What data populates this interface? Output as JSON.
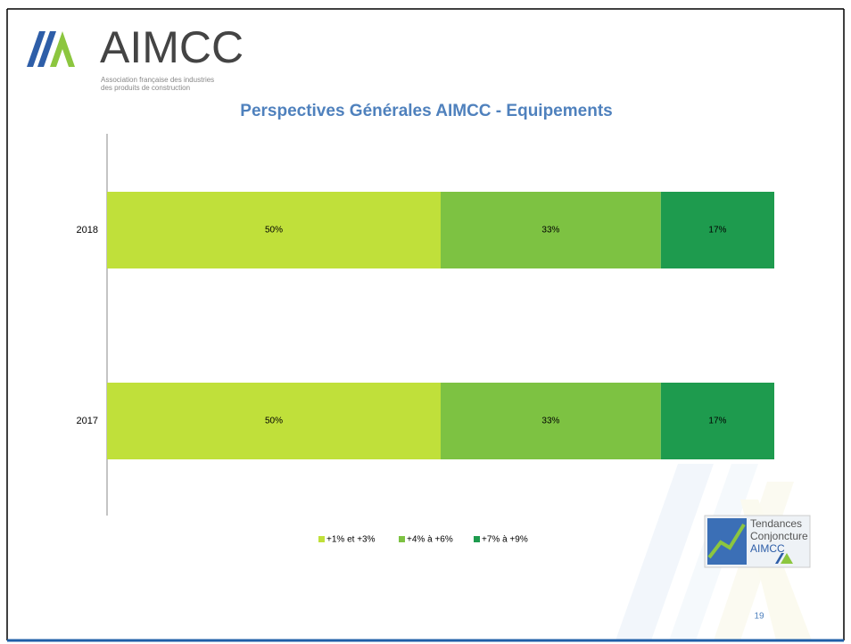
{
  "slide": {
    "logo": "AIMCC",
    "logo_line1": "Association française des industries",
    "logo_line2": "des produits de construction",
    "badge_line1": "Tendances",
    "badge_line2": "Conjoncture",
    "badge_line3": "AIMCC",
    "page_number": 19
  },
  "chart_data": {
    "type": "stacked_barh",
    "title": "Perspectives Générales AIMCC - Equipements",
    "categories": [
      "2018",
      "2017"
    ],
    "series": [
      {
        "name": "+1% et +3%",
        "color": "#c0e03a",
        "values": [
          50,
          50
        ],
        "value_labels": [
          "50%",
          "50%"
        ]
      },
      {
        "name": "+4% à +6%",
        "color": "#7dc242",
        "values": [
          33,
          33
        ],
        "value_labels": [
          "33%",
          "33%"
        ]
      },
      {
        "name": "+7% à +9%",
        "color": "#1e9b4e",
        "values": [
          17,
          17
        ],
        "value_labels": [
          "17%",
          "17%"
        ]
      }
    ],
    "legend": "bottom"
  }
}
